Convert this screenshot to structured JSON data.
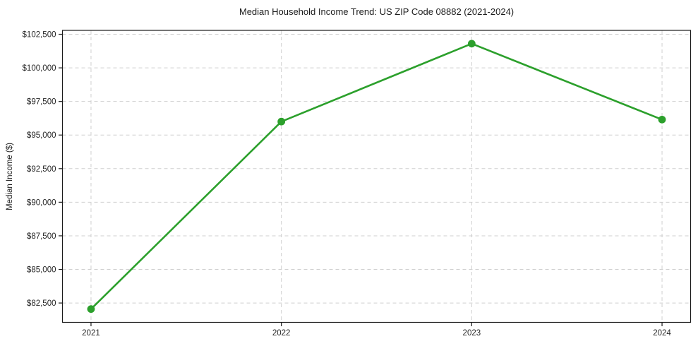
{
  "figure": {
    "title": "Median Household Income Trend: US ZIP Code 08882 (2021-2024)",
    "y_axis_label": "Median Income ($)"
  },
  "chart_data": {
    "type": "line",
    "title": "Median Household Income Trend: US ZIP Code 08882 (2021-2024)",
    "xlabel": "",
    "ylabel": "Median Income ($)",
    "categories": [
      "2021",
      "2022",
      "2023",
      "2024"
    ],
    "x": [
      2021,
      2022,
      2023,
      2024
    ],
    "series": [
      {
        "name": "Median Household Income",
        "values": [
          82050,
          96000,
          101800,
          96150
        ]
      }
    ],
    "x_ticks": [
      {
        "value": 2021,
        "label": "2021"
      },
      {
        "value": 2022,
        "label": "2022"
      },
      {
        "value": 2023,
        "label": "2023"
      },
      {
        "value": 2024,
        "label": "2024"
      }
    ],
    "y_ticks": [
      {
        "value": 82500,
        "label": "$82,500"
      },
      {
        "value": 85000,
        "label": "$85,000"
      },
      {
        "value": 87500,
        "label": "$87,500"
      },
      {
        "value": 90000,
        "label": "$90,000"
      },
      {
        "value": 92500,
        "label": "$92,500"
      },
      {
        "value": 95000,
        "label": "$95,000"
      },
      {
        "value": 97500,
        "label": "$97,500"
      },
      {
        "value": 100000,
        "label": "$100,000"
      },
      {
        "value": 102500,
        "label": "$102,500"
      }
    ],
    "xlim": [
      2020.85,
      2024.15
    ],
    "ylim": [
      81060,
      102790
    ],
    "grid": true,
    "grid_style": "dashed",
    "legend": "none",
    "line_color": "#2ca02c",
    "marker": "circle",
    "marker_color": "#2ca02c",
    "grid_color": "#cfcfcf",
    "spine_color": "#1a1a1a",
    "text_color": "#262626",
    "background_color": "#ffffff"
  }
}
